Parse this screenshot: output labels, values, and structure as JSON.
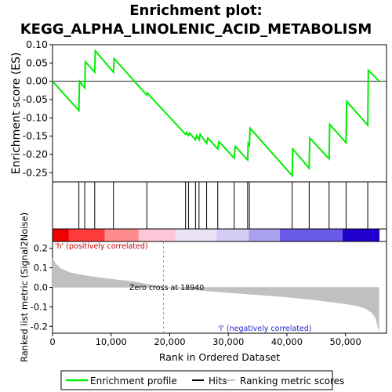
{
  "title_line1": "Enrichment plot:",
  "title_line2": "KEGG_ALPHA_LINOLENIC_ACID_METABOLISM",
  "chart_data": {
    "type": "line",
    "x_axis": {
      "label": "Rank in Ordered Dataset",
      "lim": [
        0,
        57000
      ],
      "ticks": [
        0,
        10000,
        20000,
        30000,
        40000,
        50000
      ],
      "tick_labels": [
        "0",
        "10,000",
        "20,000",
        "30,000",
        "40,000",
        "50,000"
      ]
    },
    "es_panel": {
      "ylabel": "Enrichment score (ES)",
      "ylim": [
        -0.275,
        0.1
      ],
      "yticks": [
        0.1,
        0.05,
        0.0,
        -0.05,
        -0.1,
        -0.15,
        -0.2,
        -0.25
      ],
      "ytick_labels": [
        "0.10",
        "0.05",
        "0.00",
        "-0.05",
        "-0.10",
        "-0.15",
        "-0.20",
        "-0.25"
      ],
      "series_name": "Enrichment profile",
      "color": "#00ee00",
      "points": [
        [
          0,
          0.0
        ],
        [
          4500,
          -0.08
        ],
        [
          4600,
          0.0
        ],
        [
          5500,
          -0.018
        ],
        [
          5600,
          0.053
        ],
        [
          7200,
          0.025
        ],
        [
          7300,
          0.083
        ],
        [
          10400,
          0.025
        ],
        [
          10500,
          0.062
        ],
        [
          16100,
          -0.038
        ],
        [
          16200,
          -0.032
        ],
        [
          16500,
          -0.038
        ],
        [
          22700,
          -0.145
        ],
        [
          22900,
          -0.14
        ],
        [
          23200,
          -0.148
        ],
        [
          23400,
          -0.142
        ],
        [
          24400,
          -0.16
        ],
        [
          24600,
          -0.148
        ],
        [
          25000,
          -0.16
        ],
        [
          25200,
          -0.145
        ],
        [
          26300,
          -0.17
        ],
        [
          26500,
          -0.155
        ],
        [
          28200,
          -0.185
        ],
        [
          28400,
          -0.165
        ],
        [
          31000,
          -0.21
        ],
        [
          31200,
          -0.178
        ],
        [
          33300,
          -0.215
        ],
        [
          33400,
          -0.17
        ],
        [
          33600,
          -0.175
        ],
        [
          33700,
          -0.128
        ],
        [
          40900,
          -0.258
        ],
        [
          41000,
          -0.185
        ],
        [
          43800,
          -0.238
        ],
        [
          43900,
          -0.155
        ],
        [
          47200,
          -0.212
        ],
        [
          47300,
          -0.118
        ],
        [
          50100,
          -0.168
        ],
        [
          50200,
          -0.055
        ],
        [
          53800,
          -0.12
        ],
        [
          53900,
          0.03
        ],
        [
          55800,
          0.0
        ]
      ]
    },
    "hits": {
      "label": "Hits",
      "positions": [
        4500,
        5500,
        7200,
        10400,
        16100,
        22700,
        23200,
        24400,
        25000,
        26300,
        28200,
        31000,
        33300,
        33600,
        40900,
        43800,
        47200,
        50100,
        53800
      ]
    },
    "ranked_metric": {
      "ylabel": "Ranked list metric (Signal2Noise)",
      "ylim": [
        -0.235,
        0.235
      ],
      "yticks": [
        0.2,
        0.1,
        0.0,
        -0.1,
        -0.2
      ],
      "ytick_labels": [
        "0.2",
        "0.1",
        "0.0",
        "-0.1",
        "-0.2"
      ],
      "series_name": "Ranking metric scores",
      "fill_color": "#c0c0c0",
      "curve": [
        [
          0,
          0.15
        ],
        [
          500,
          0.12
        ],
        [
          1500,
          0.095
        ],
        [
          3000,
          0.075
        ],
        [
          6000,
          0.058
        ],
        [
          10000,
          0.042
        ],
        [
          14000,
          0.028
        ],
        [
          18940,
          0.0
        ],
        [
          20000,
          -0.004
        ],
        [
          25000,
          -0.015
        ],
        [
          30000,
          -0.027
        ],
        [
          35000,
          -0.038
        ],
        [
          40000,
          -0.05
        ],
        [
          45000,
          -0.065
        ],
        [
          50000,
          -0.085
        ],
        [
          52000,
          -0.095
        ],
        [
          53500,
          -0.11
        ],
        [
          54500,
          -0.13
        ],
        [
          55200,
          -0.16
        ],
        [
          55500,
          -0.2
        ],
        [
          55700,
          -0.22
        ]
      ],
      "zero_cross_label": "Zero cross at 18940",
      "zero_cross": 18940,
      "pos_label": "'h' (positively correlated)",
      "neg_label": "'l' (negatively correlated)"
    },
    "heat_bar": {
      "segments": [
        {
          "start": 0,
          "end": 2800,
          "color": "#f00000"
        },
        {
          "start": 2800,
          "end": 8900,
          "color": "#ff3c3c"
        },
        {
          "start": 8900,
          "end": 14700,
          "color": "#ff8c8c"
        },
        {
          "start": 14700,
          "end": 21000,
          "color": "#ffc6dc"
        },
        {
          "start": 21000,
          "end": 28000,
          "color": "#ebe2f5"
        },
        {
          "start": 28000,
          "end": 33500,
          "color": "#d4ccf2"
        },
        {
          "start": 33500,
          "end": 38800,
          "color": "#aaa0f0"
        },
        {
          "start": 38800,
          "end": 49500,
          "color": "#6a5ae8"
        },
        {
          "start": 49500,
          "end": 55800,
          "color": "#2000cc"
        }
      ]
    },
    "legend": {
      "position": "bottom",
      "items": [
        {
          "label": "Enrichment profile",
          "color": "#00ee00"
        },
        {
          "label": "Hits",
          "color": "#000000"
        },
        {
          "label": "Ranking metric scores",
          "color": "#c0c0c0"
        }
      ]
    }
  }
}
